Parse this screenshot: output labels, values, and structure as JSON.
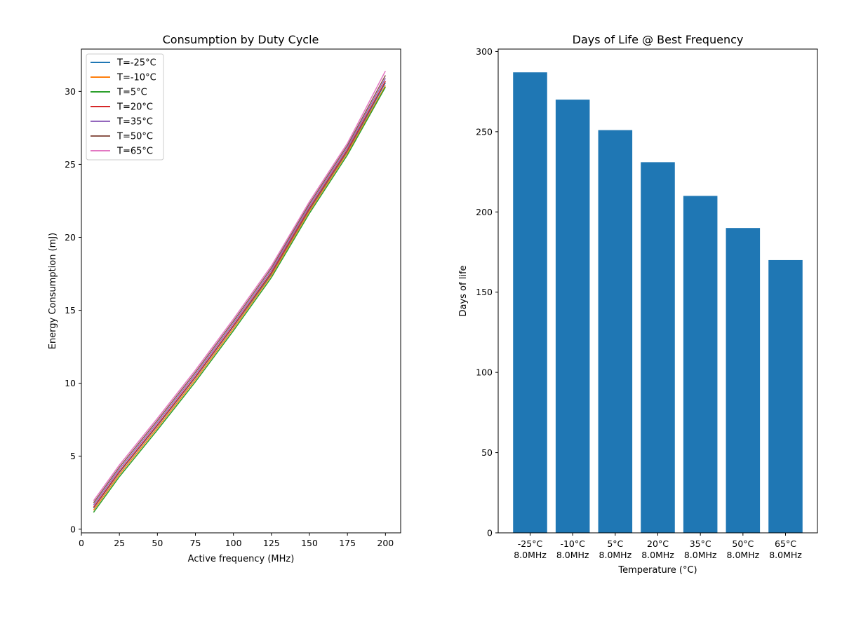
{
  "chart_data": [
    {
      "type": "line",
      "title": "Consumption by Duty Cycle",
      "xlabel": "Active frequency (MHz)",
      "ylabel": "Energy Consumption (mJ)",
      "xlim": [
        0,
        210
      ],
      "ylim": [
        -0.25,
        32.9
      ],
      "xticks": [
        0,
        25,
        50,
        75,
        100,
        125,
        150,
        175,
        200
      ],
      "yticks": [
        0,
        5,
        10,
        15,
        20,
        25,
        30
      ],
      "grid": false,
      "legend_position": "top-left",
      "x": [
        8,
        25,
        50,
        75,
        100,
        125,
        150,
        175,
        200
      ],
      "series": [
        {
          "name": "T=-25°C",
          "color": "#1f77b4",
          "values": [
            1.45,
            3.9,
            7.1,
            10.4,
            13.9,
            17.5,
            21.9,
            25.9,
            30.6
          ]
        },
        {
          "name": "T=-10°C",
          "color": "#ff7f0e",
          "values": [
            1.3,
            3.75,
            6.95,
            10.25,
            13.75,
            17.4,
            21.8,
            25.8,
            30.4
          ]
        },
        {
          "name": "T=5°C",
          "color": "#2ca02c",
          "values": [
            1.15,
            3.6,
            6.8,
            10.1,
            13.6,
            17.25,
            21.65,
            25.65,
            30.3
          ]
        },
        {
          "name": "T=20°C",
          "color": "#d62728",
          "values": [
            1.5,
            3.95,
            7.15,
            10.45,
            13.95,
            17.6,
            22.0,
            26.0,
            30.7
          ]
        },
        {
          "name": "T=35°C",
          "color": "#9467bd",
          "values": [
            1.65,
            4.1,
            7.3,
            10.6,
            14.1,
            17.75,
            22.15,
            26.15,
            30.9
          ]
        },
        {
          "name": "T=50°C",
          "color": "#8c564b",
          "values": [
            1.8,
            4.25,
            7.45,
            10.75,
            14.25,
            17.9,
            22.3,
            26.3,
            31.1
          ]
        },
        {
          "name": "T=65°C",
          "color": "#e377c2",
          "values": [
            1.95,
            4.4,
            7.6,
            10.9,
            14.4,
            18.05,
            22.45,
            26.45,
            31.4
          ]
        }
      ]
    },
    {
      "type": "bar",
      "title": "Days of Life @ Best Frequency",
      "xlabel": "Temperature (°C)",
      "ylabel": "Days of life",
      "ylim": [
        0,
        301.5
      ],
      "yticks": [
        0,
        50,
        100,
        150,
        200,
        250,
        300
      ],
      "grid": false,
      "color": "#1f77b4",
      "categories": [
        [
          "-25°C",
          "8.0MHz"
        ],
        [
          "-10°C",
          "8.0MHz"
        ],
        [
          "5°C",
          "8.0MHz"
        ],
        [
          "20°C",
          "8.0MHz"
        ],
        [
          "35°C",
          "8.0MHz"
        ],
        [
          "50°C",
          "8.0MHz"
        ],
        [
          "65°C",
          "8.0MHz"
        ]
      ],
      "values": [
        287,
        270,
        251,
        231,
        210,
        190,
        170
      ]
    }
  ]
}
